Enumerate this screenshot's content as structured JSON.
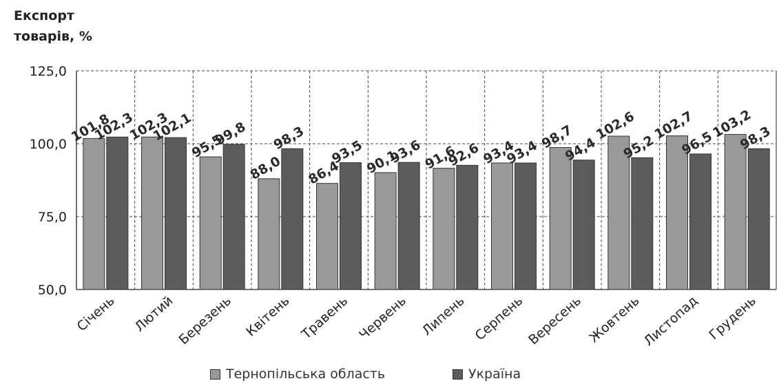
{
  "chart_data": {
    "type": "bar",
    "ylabel_lines": [
      "Експорт",
      "товарів, %"
    ],
    "categories": [
      "Січень",
      "Лютий",
      "Березень",
      "Квітень",
      "Травень",
      "Червень",
      "Липень",
      "Серпень",
      "Вересень",
      "Жовтень",
      "Листопад",
      "Грудень"
    ],
    "series": [
      {
        "name": "Тернопільська область",
        "color": "#999999",
        "values": [
          101.8,
          102.3,
          95.5,
          88.0,
          86.4,
          90.1,
          91.6,
          93.4,
          98.7,
          102.6,
          102.7,
          103.2
        ],
        "labels": [
          "101,8",
          "102,3",
          "95,5",
          "88,0",
          "86,4",
          "90,1",
          "91,6",
          "93,4",
          "98,7",
          "102,6",
          "102,7",
          "103,2"
        ]
      },
      {
        "name": "Україна",
        "color": "#5c5c5e",
        "values": [
          102.3,
          102.1,
          99.8,
          98.3,
          93.5,
          93.6,
          92.6,
          93.4,
          94.4,
          95.2,
          96.5,
          98.3
        ],
        "labels": [
          "102,3",
          "102,1",
          "99,8",
          "98,3",
          "93,5",
          "93,6",
          "92,6",
          "93,4",
          "94,4",
          "95,2",
          "96,5",
          "98,3"
        ]
      }
    ],
    "ylim": [
      50,
      125
    ],
    "yticks": [
      50,
      75,
      100,
      125
    ],
    "ytick_labels": [
      "50,0",
      "75,0",
      "100,0",
      "125,0"
    ],
    "grid": true,
    "legend": "bottom"
  }
}
